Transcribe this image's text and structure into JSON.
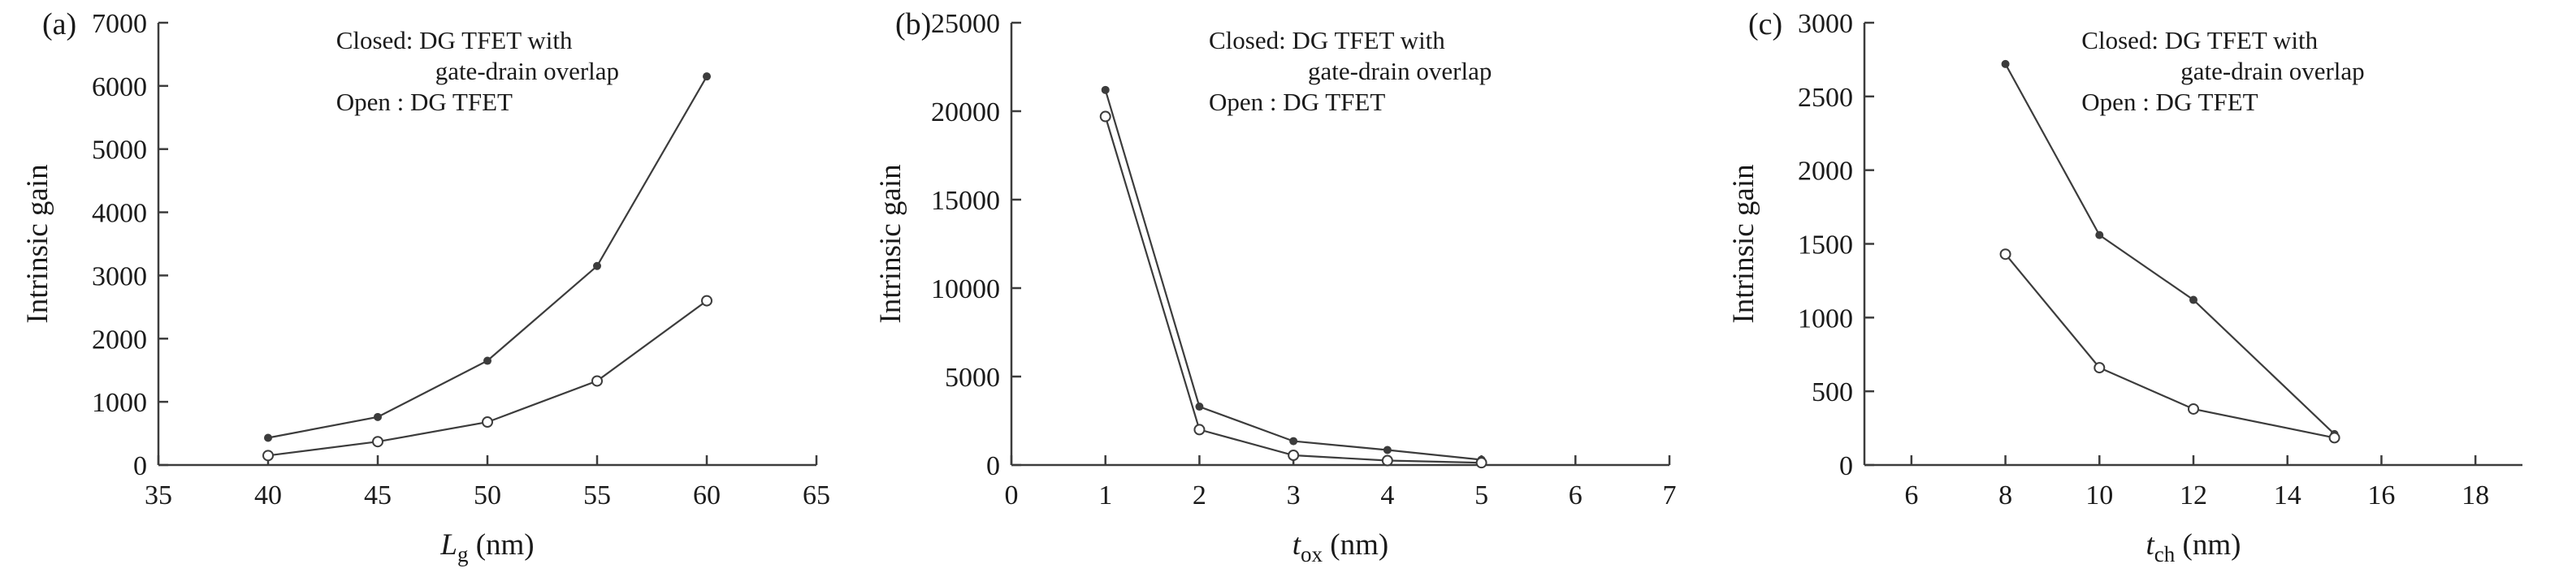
{
  "figure": {
    "background": "#ffffff",
    "axis_color": "#3c3c3c",
    "line_color": "#3c3c3c",
    "text_color": "#1a1a1a"
  },
  "chart_data": [
    {
      "type": "line",
      "panel_label": "(a)",
      "ylabel": "Intrinsic gain",
      "xlabel": {
        "symbol": "L",
        "sub": "g",
        "unit": " (nm)"
      },
      "xlim": [
        35,
        65
      ],
      "ylim": [
        0,
        7000
      ],
      "xticks": [
        35,
        40,
        45,
        50,
        55,
        60,
        65
      ],
      "yticks": [
        0,
        1000,
        2000,
        3000,
        4000,
        5000,
        6000,
        7000
      ],
      "grid": false,
      "legend": {
        "x_frac": 0.27,
        "lines": [
          {
            "text": "Closed: DG TFET with",
            "indent": 0
          },
          {
            "text": "gate-drain overlap",
            "indent": 122
          },
          {
            "text": "Open  : DG TFET",
            "indent": 0
          }
        ]
      },
      "series": [
        {
          "name": "DG TFET with gate-drain overlap",
          "marker": "filled",
          "x": [
            40,
            45,
            50,
            55,
            60
          ],
          "y": [
            430,
            760,
            1650,
            3150,
            6150
          ]
        },
        {
          "name": "DG TFET",
          "marker": "open",
          "x": [
            40,
            45,
            50,
            55,
            60
          ],
          "y": [
            150,
            370,
            680,
            1330,
            2600
          ]
        }
      ]
    },
    {
      "type": "line",
      "panel_label": "(b)",
      "ylabel": "Intrinsic gain",
      "xlabel": {
        "symbol": "t",
        "sub": "ox",
        "unit": " (nm)"
      },
      "xlim": [
        0,
        7
      ],
      "ylim": [
        0,
        25000
      ],
      "xticks": [
        0,
        1,
        2,
        3,
        4,
        5,
        6,
        7
      ],
      "yticks": [
        0,
        5000,
        10000,
        15000,
        20000,
        25000
      ],
      "grid": false,
      "legend": {
        "x_frac": 0.3,
        "lines": [
          {
            "text": "Closed: DG TFET with",
            "indent": 0
          },
          {
            "text": "gate-drain overlap",
            "indent": 122
          },
          {
            "text": "Open  : DG TFET",
            "indent": 0
          }
        ]
      },
      "series": [
        {
          "name": "DG TFET with gate-drain overlap",
          "marker": "filled",
          "x": [
            1,
            2,
            3,
            4,
            5
          ],
          "y": [
            21200,
            3300,
            1350,
            850,
            300
          ]
        },
        {
          "name": "DG TFET",
          "marker": "open",
          "x": [
            1,
            2,
            3,
            4,
            5
          ],
          "y": [
            19700,
            2000,
            550,
            250,
            130
          ]
        }
      ]
    },
    {
      "type": "line",
      "panel_label": "(c)",
      "ylabel": "Intrinsic gain",
      "xlabel": {
        "symbol": "t",
        "sub": "ch",
        "unit": " (nm)"
      },
      "xlim": [
        5,
        19
      ],
      "ylim": [
        0,
        3000
      ],
      "xticks": [
        6,
        8,
        10,
        12,
        14,
        16,
        18
      ],
      "yticks": [
        0,
        500,
        1000,
        1500,
        2000,
        2500,
        3000
      ],
      "grid": false,
      "legend": {
        "x_frac": 0.33,
        "lines": [
          {
            "text": "Closed: DG TFET with",
            "indent": 0
          },
          {
            "text": "gate-drain overlap",
            "indent": 122
          },
          {
            "text": "Open  : DG TFET",
            "indent": 0
          }
        ]
      },
      "series": [
        {
          "name": "DG TFET with gate-drain overlap",
          "marker": "filled",
          "x": [
            8,
            10,
            12,
            15
          ],
          "y": [
            2720,
            1560,
            1120,
            210
          ]
        },
        {
          "name": "DG TFET",
          "marker": "open",
          "x": [
            8,
            10,
            12,
            15
          ],
          "y": [
            1430,
            660,
            380,
            185
          ]
        }
      ]
    }
  ]
}
